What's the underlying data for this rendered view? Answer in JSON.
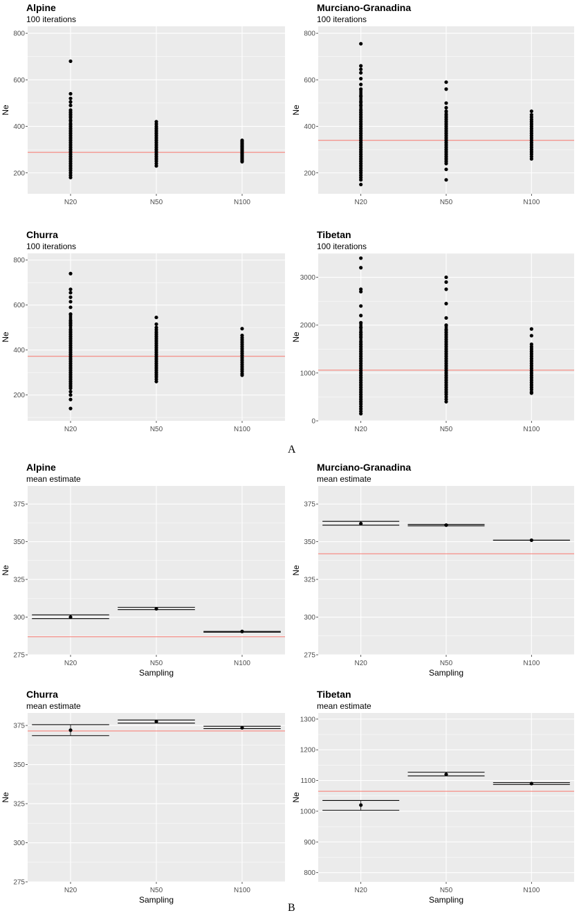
{
  "figure": {
    "panel_labels": [
      "A",
      "B"
    ]
  },
  "colors": {
    "panel_bg": "#ebebeb",
    "grid": "#ffffff",
    "reference_line": "#f8766d",
    "points": "#000000"
  },
  "chart_data": [
    {
      "type": "scatter",
      "title": "Alpine",
      "subtitle": "100 iterations",
      "xlabel": "",
      "ylabel": "Ne",
      "categories": [
        "N20",
        "N50",
        "N100"
      ],
      "ylim": [
        110,
        830
      ],
      "yticks": [
        200,
        400,
        600,
        800
      ],
      "reference": 288,
      "series": [
        {
          "name": "N20",
          "values": [
            680,
            540,
            520,
            505,
            490,
            470,
            460,
            450,
            440,
            425,
            410,
            400,
            390,
            380,
            370,
            360,
            350,
            340,
            330,
            320,
            310,
            300,
            290,
            280,
            270,
            260,
            250,
            240,
            230,
            220,
            210,
            200,
            190,
            180
          ]
        },
        {
          "name": "N50",
          "values": [
            420,
            410,
            400,
            390,
            380,
            370,
            360,
            350,
            340,
            330,
            320,
            310,
            300,
            290,
            280,
            270,
            260,
            250,
            240,
            230
          ]
        },
        {
          "name": "N100",
          "values": [
            340,
            335,
            330,
            325,
            320,
            315,
            310,
            305,
            300,
            295,
            290,
            285,
            280,
            275,
            270,
            265,
            260,
            255,
            250,
            248
          ]
        }
      ],
      "grid": true
    },
    {
      "type": "scatter",
      "title": "Murciano-Granadina",
      "subtitle": "100 iterations",
      "xlabel": "",
      "ylabel": "Ne",
      "categories": [
        "N20",
        "N50",
        "N100"
      ],
      "ylim": [
        110,
        830
      ],
      "yticks": [
        200,
        400,
        600,
        800
      ],
      "reference": 340,
      "series": [
        {
          "name": "N20",
          "values": [
            755,
            660,
            645,
            630,
            605,
            580,
            560,
            530,
            505,
            490,
            470,
            460,
            450,
            440,
            430,
            420,
            410,
            400,
            390,
            380,
            370,
            360,
            350,
            340,
            330,
            320,
            310,
            300,
            290,
            280,
            270,
            260,
            250,
            240,
            230,
            220,
            210,
            200,
            190,
            180,
            170,
            150
          ]
        },
        {
          "name": "N50",
          "values": [
            590,
            560,
            500,
            480,
            465,
            450,
            440,
            430,
            420,
            410,
            400,
            390,
            380,
            370,
            360,
            350,
            340,
            330,
            320,
            310,
            300,
            290,
            280,
            270,
            260,
            250,
            240,
            215,
            170
          ]
        },
        {
          "name": "N100",
          "values": [
            465,
            450,
            440,
            430,
            420,
            410,
            400,
            390,
            380,
            370,
            360,
            350,
            340,
            330,
            320,
            310,
            300,
            290,
            280,
            270,
            260
          ]
        }
      ],
      "grid": true
    },
    {
      "type": "scatter",
      "title": "Churra",
      "subtitle": "100 iterations",
      "xlabel": "",
      "ylabel": "Ne",
      "categories": [
        "N20",
        "N50",
        "N100"
      ],
      "ylim": [
        85,
        830
      ],
      "yticks": [
        200,
        400,
        600,
        800
      ],
      "reference": 372,
      "series": [
        {
          "name": "N20",
          "values": [
            740,
            670,
            655,
            635,
            615,
            590,
            560,
            530,
            520,
            510,
            490,
            480,
            470,
            460,
            450,
            440,
            430,
            420,
            410,
            400,
            390,
            380,
            370,
            360,
            350,
            340,
            330,
            320,
            310,
            300,
            290,
            280,
            270,
            260,
            250,
            240,
            230,
            215,
            200,
            180,
            140
          ]
        },
        {
          "name": "N50",
          "values": [
            545,
            515,
            500,
            490,
            480,
            470,
            460,
            450,
            440,
            430,
            420,
            410,
            400,
            390,
            380,
            370,
            360,
            350,
            340,
            330,
            320,
            310,
            300,
            290,
            280,
            270,
            260
          ]
        },
        {
          "name": "N100",
          "values": [
            495,
            465,
            455,
            445,
            435,
            425,
            415,
            405,
            395,
            385,
            375,
            365,
            355,
            345,
            335,
            325,
            315,
            305,
            295,
            288
          ]
        }
      ],
      "grid": true
    },
    {
      "type": "scatter",
      "title": "Tibetan",
      "subtitle": "100 iterations",
      "xlabel": "",
      "ylabel": "Ne",
      "categories": [
        "N20",
        "N50",
        "N100"
      ],
      "ylim": [
        0,
        3500
      ],
      "yticks": [
        0,
        1000,
        2000,
        3000
      ],
      "reference": 1060,
      "series": [
        {
          "name": "N20",
          "values": [
            3400,
            3200,
            2750,
            2700,
            2400,
            2200,
            2050,
            1950,
            1850,
            1800,
            1750,
            1650,
            1600,
            1550,
            1500,
            1450,
            1400,
            1350,
            1300,
            1250,
            1200,
            1150,
            1100,
            1050,
            1000,
            950,
            900,
            850,
            800,
            750,
            700,
            650,
            600,
            550,
            500,
            450,
            400,
            350,
            300,
            250,
            200,
            150
          ]
        },
        {
          "name": "N50",
          "values": [
            3000,
            2900,
            2750,
            2450,
            2150,
            2000,
            1900,
            1850,
            1800,
            1750,
            1700,
            1650,
            1600,
            1550,
            1500,
            1450,
            1400,
            1350,
            1300,
            1250,
            1200,
            1150,
            1100,
            1050,
            1000,
            950,
            900,
            850,
            800,
            750,
            700,
            650,
            600,
            550,
            500,
            450,
            400
          ]
        },
        {
          "name": "N100",
          "values": [
            1920,
            1780,
            1600,
            1550,
            1500,
            1450,
            1400,
            1350,
            1300,
            1250,
            1200,
            1150,
            1100,
            1050,
            1000,
            950,
            900,
            850,
            800,
            750,
            700,
            650,
            600,
            580
          ]
        }
      ],
      "grid": true
    },
    {
      "type": "errorbar",
      "title": "Alpine",
      "subtitle": "mean estimate",
      "xlabel": "Sampling",
      "ylabel": "Ne",
      "categories": [
        "N20",
        "N50",
        "N100"
      ],
      "ylim": [
        275,
        387
      ],
      "yticks": [
        275,
        300,
        325,
        350,
        375
      ],
      "reference": 287,
      "means": [
        300,
        305.5,
        290.5
      ],
      "lower": [
        299,
        305,
        290
      ],
      "upper": [
        301.5,
        306.5,
        290.5
      ],
      "grid": true
    },
    {
      "type": "errorbar",
      "title": "Murciano-Granadina",
      "subtitle": "mean estimate",
      "xlabel": "Sampling",
      "ylabel": "Ne",
      "categories": [
        "N20",
        "N50",
        "N100"
      ],
      "ylim": [
        275,
        387
      ],
      "yticks": [
        275,
        300,
        325,
        350,
        375
      ],
      "reference": 342,
      "means": [
        362,
        361,
        351
      ],
      "lower": [
        361,
        360.5,
        351
      ],
      "upper": [
        363.5,
        361.5,
        351
      ],
      "grid": true
    },
    {
      "type": "errorbar",
      "title": "Churra",
      "subtitle": "mean estimate",
      "xlabel": "Sampling",
      "ylabel": "Ne",
      "categories": [
        "N20",
        "N50",
        "N100"
      ],
      "ylim": [
        275,
        383
      ],
      "yticks": [
        275,
        300,
        325,
        350,
        375
      ],
      "reference": 371.5,
      "means": [
        372,
        377.5,
        373.5
      ],
      "lower": [
        368.5,
        376.5,
        373
      ],
      "upper": [
        375.5,
        378.5,
        374.5
      ],
      "grid": true
    },
    {
      "type": "errorbar",
      "title": "Tibetan",
      "subtitle": "mean estimate",
      "xlabel": "Sampling",
      "ylabel": "Ne",
      "categories": [
        "N20",
        "N50",
        "N100"
      ],
      "ylim": [
        770,
        1320
      ],
      "yticks": [
        800,
        900,
        1000,
        1100,
        1200,
        1300
      ],
      "reference": 1065,
      "means": [
        1020,
        1120,
        1090
      ],
      "lower": [
        1003,
        1115,
        1087
      ],
      "upper": [
        1035,
        1127,
        1093
      ],
      "grid": true
    }
  ]
}
